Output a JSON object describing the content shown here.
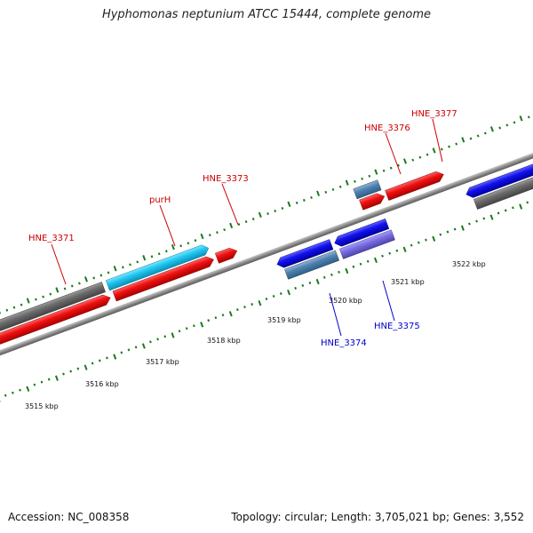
{
  "title": "Hyphomonas neptunium ATCC 15444, complete genome",
  "footer": {
    "accession": "Accession: NC_008358",
    "summary": "Topology: circular; Length: 3,705,021 bp; Genes: 3,552"
  },
  "colors": {
    "forward_label": "#cc0000",
    "reverse_label": "#0000cc",
    "tick": "#1a7a1a",
    "backbone": "#888888"
  },
  "scale": {
    "ticks": [
      {
        "label": "3515 kbp"
      },
      {
        "label": "3516 kbp"
      },
      {
        "label": "3517 kbp"
      },
      {
        "label": "3518 kbp"
      },
      {
        "label": "3519 kbp"
      },
      {
        "label": "3520 kbp"
      },
      {
        "label": "3521 kbp"
      },
      {
        "label": "3522 kbp"
      }
    ]
  },
  "gene_labels": [
    {
      "name": "HNE_3371",
      "strand": "forward"
    },
    {
      "name": "purH",
      "strand": "forward"
    },
    {
      "name": "HNE_3373",
      "strand": "forward"
    },
    {
      "name": "HNE_3376",
      "strand": "forward"
    },
    {
      "name": "HNE_3377",
      "strand": "forward"
    },
    {
      "name": "HNE_3374",
      "strand": "reverse"
    },
    {
      "name": "HNE_3375",
      "strand": "reverse"
    }
  ]
}
